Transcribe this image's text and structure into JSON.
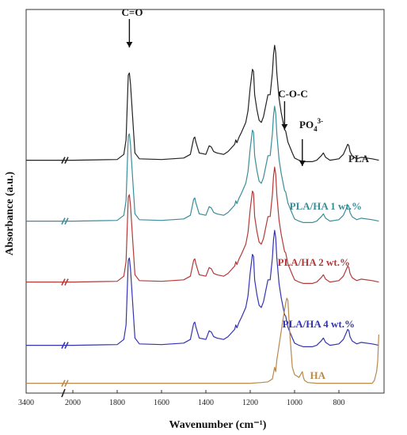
{
  "chart_data": {
    "type": "line",
    "xlabel": "Wavenumber (cm⁻¹)",
    "ylabel": "Absorbance (a.u.)",
    "x_reversed": true,
    "axis_break_after": 3400,
    "x_ticks": [
      2000,
      1800,
      1600,
      1400,
      1200,
      1000,
      800
    ],
    "x_first_label": "3400",
    "x_first_tick_labels": [
      "2000"
    ],
    "grid": false,
    "series": [
      {
        "name": "PLA",
        "color": "#222222",
        "x": [
          3400,
          2100,
          2000,
          1800,
          1770,
          1760,
          1750,
          1745,
          1740,
          1720,
          1700,
          1600,
          1500,
          1470,
          1455,
          1450,
          1445,
          1430,
          1400,
          1385,
          1375,
          1365,
          1350,
          1320,
          1300,
          1270,
          1265,
          1260,
          1250,
          1240,
          1220,
          1210,
          1200,
          1190,
          1185,
          1180,
          1170,
          1160,
          1150,
          1140,
          1130,
          1120,
          1110,
          1100,
          1095,
          1090,
          1085,
          1080,
          1070,
          1060,
          1045,
          1040,
          1030,
          1010,
          1000,
          980,
          960,
          920,
          900,
          880,
          870,
          860,
          840,
          800,
          780,
          760,
          755,
          750,
          740,
          720,
          700,
          650,
          620
        ],
        "y": [
          20,
          20,
          20,
          21,
          28,
          48,
          137,
          140,
          125,
          30,
          22,
          21,
          23,
          28,
          50,
          52,
          45,
          30,
          28,
          40,
          38,
          32,
          30,
          28,
          32,
          42,
          48,
          44,
          52,
          58,
          72,
          88,
          120,
          145,
          142,
          110,
          90,
          75,
          72,
          80,
          95,
          110,
          110,
          140,
          165,
          178,
          168,
          140,
          105,
          85,
          62,
          60,
          45,
          30,
          23,
          20,
          18,
          18,
          20,
          26,
          30,
          24,
          20,
          22,
          28,
          42,
          40,
          32,
          26,
          22,
          24,
          22,
          20
        ]
      },
      {
        "name": "PLA/HA 1 wt.%",
        "color": "#3b8d99",
        "x": [
          3400,
          2100,
          2000,
          1800,
          1770,
          1760,
          1750,
          1745,
          1740,
          1720,
          1700,
          1600,
          1500,
          1470,
          1455,
          1450,
          1445,
          1430,
          1400,
          1385,
          1375,
          1365,
          1350,
          1320,
          1300,
          1270,
          1265,
          1260,
          1250,
          1240,
          1220,
          1210,
          1200,
          1190,
          1185,
          1180,
          1170,
          1160,
          1150,
          1140,
          1130,
          1120,
          1110,
          1100,
          1095,
          1090,
          1085,
          1080,
          1070,
          1060,
          1045,
          1040,
          1030,
          1010,
          1000,
          980,
          960,
          920,
          900,
          880,
          870,
          860,
          840,
          800,
          780,
          760,
          755,
          750,
          740,
          720,
          700,
          650,
          620
        ],
        "y": [
          20,
          20,
          20,
          21,
          28,
          48,
          137,
          140,
          125,
          30,
          22,
          21,
          23,
          28,
          50,
          52,
          45,
          30,
          28,
          40,
          38,
          32,
          30,
          28,
          32,
          42,
          48,
          44,
          52,
          58,
          72,
          88,
          120,
          145,
          142,
          110,
          90,
          75,
          72,
          80,
          95,
          110,
          110,
          140,
          165,
          178,
          168,
          140,
          105,
          85,
          62,
          60,
          45,
          30,
          23,
          20,
          18,
          18,
          20,
          26,
          30,
          24,
          20,
          22,
          28,
          42,
          40,
          32,
          26,
          22,
          24,
          22,
          20
        ]
      },
      {
        "name": "PLA/HA 2 wt.%",
        "color": "#b23a3a",
        "x": [
          3400,
          2100,
          2000,
          1800,
          1770,
          1760,
          1750,
          1745,
          1740,
          1720,
          1700,
          1600,
          1500,
          1470,
          1455,
          1450,
          1445,
          1430,
          1400,
          1385,
          1375,
          1365,
          1350,
          1320,
          1300,
          1270,
          1265,
          1260,
          1250,
          1240,
          1220,
          1210,
          1200,
          1190,
          1185,
          1180,
          1170,
          1160,
          1150,
          1140,
          1130,
          1120,
          1110,
          1100,
          1095,
          1090,
          1085,
          1080,
          1070,
          1060,
          1045,
          1040,
          1030,
          1010,
          1000,
          980,
          960,
          920,
          900,
          880,
          870,
          860,
          840,
          800,
          780,
          760,
          755,
          750,
          740,
          720,
          700,
          650,
          620
        ],
        "y": [
          20,
          20,
          20,
          21,
          28,
          48,
          137,
          140,
          125,
          30,
          22,
          21,
          23,
          28,
          50,
          52,
          45,
          30,
          28,
          40,
          38,
          32,
          30,
          28,
          32,
          42,
          48,
          44,
          52,
          58,
          72,
          88,
          120,
          145,
          142,
          110,
          90,
          75,
          72,
          80,
          95,
          110,
          110,
          140,
          165,
          178,
          168,
          140,
          105,
          85,
          62,
          60,
          45,
          30,
          23,
          20,
          18,
          18,
          20,
          26,
          30,
          24,
          20,
          22,
          28,
          42,
          40,
          32,
          26,
          22,
          24,
          22,
          20
        ]
      },
      {
        "name": "PLA/HA 4 wt.%",
        "color": "#3434b0",
        "x": [
          3400,
          2100,
          2000,
          1800,
          1770,
          1760,
          1750,
          1745,
          1740,
          1720,
          1700,
          1600,
          1500,
          1470,
          1455,
          1450,
          1445,
          1430,
          1400,
          1385,
          1375,
          1365,
          1350,
          1320,
          1300,
          1270,
          1265,
          1260,
          1250,
          1240,
          1220,
          1210,
          1200,
          1190,
          1185,
          1180,
          1170,
          1160,
          1150,
          1140,
          1130,
          1120,
          1110,
          1100,
          1095,
          1090,
          1085,
          1080,
          1070,
          1060,
          1045,
          1040,
          1030,
          1010,
          1000,
          980,
          960,
          920,
          900,
          880,
          870,
          860,
          840,
          800,
          780,
          760,
          755,
          750,
          740,
          720,
          700,
          650,
          620
        ],
        "y": [
          20,
          20,
          20,
          21,
          28,
          48,
          137,
          140,
          125,
          30,
          22,
          21,
          23,
          28,
          50,
          52,
          45,
          30,
          28,
          40,
          38,
          32,
          30,
          28,
          32,
          42,
          48,
          44,
          52,
          58,
          72,
          88,
          120,
          145,
          142,
          110,
          90,
          75,
          72,
          80,
          95,
          110,
          110,
          140,
          165,
          178,
          168,
          140,
          105,
          85,
          62,
          60,
          45,
          30,
          23,
          20,
          18,
          18,
          20,
          26,
          30,
          24,
          20,
          22,
          28,
          42,
          40,
          32,
          26,
          22,
          24,
          22,
          20
        ]
      },
      {
        "name": "HA",
        "color": "#b8894a",
        "x": [
          3400,
          2100,
          2000,
          1800,
          1600,
          1400,
          1200,
          1150,
          1120,
          1100,
          1090,
          1085,
          1080,
          1070,
          1060,
          1050,
          1040,
          1035,
          1030,
          1025,
          1020,
          1010,
          1000,
          990,
          980,
          965,
          960,
          955,
          940,
          900,
          800,
          700,
          650,
          640,
          630,
          625,
          620
        ],
        "y": [
          8,
          8,
          8,
          8,
          8,
          8,
          8,
          9,
          10,
          14,
          30,
          24,
          40,
          60,
          80,
          100,
          118,
          125,
          122,
          95,
          70,
          30,
          20,
          18,
          16,
          24,
          16,
          12,
          9,
          8,
          8,
          8,
          8,
          12,
          24,
          38,
          75
        ]
      }
    ],
    "annotations": [
      {
        "text": "C=O",
        "x": 1745
      },
      {
        "text": "C-O-C",
        "x": 1045
      },
      {
        "text": "PO",
        "sub": "4",
        "sup": "3-",
        "x": 965
      }
    ]
  }
}
